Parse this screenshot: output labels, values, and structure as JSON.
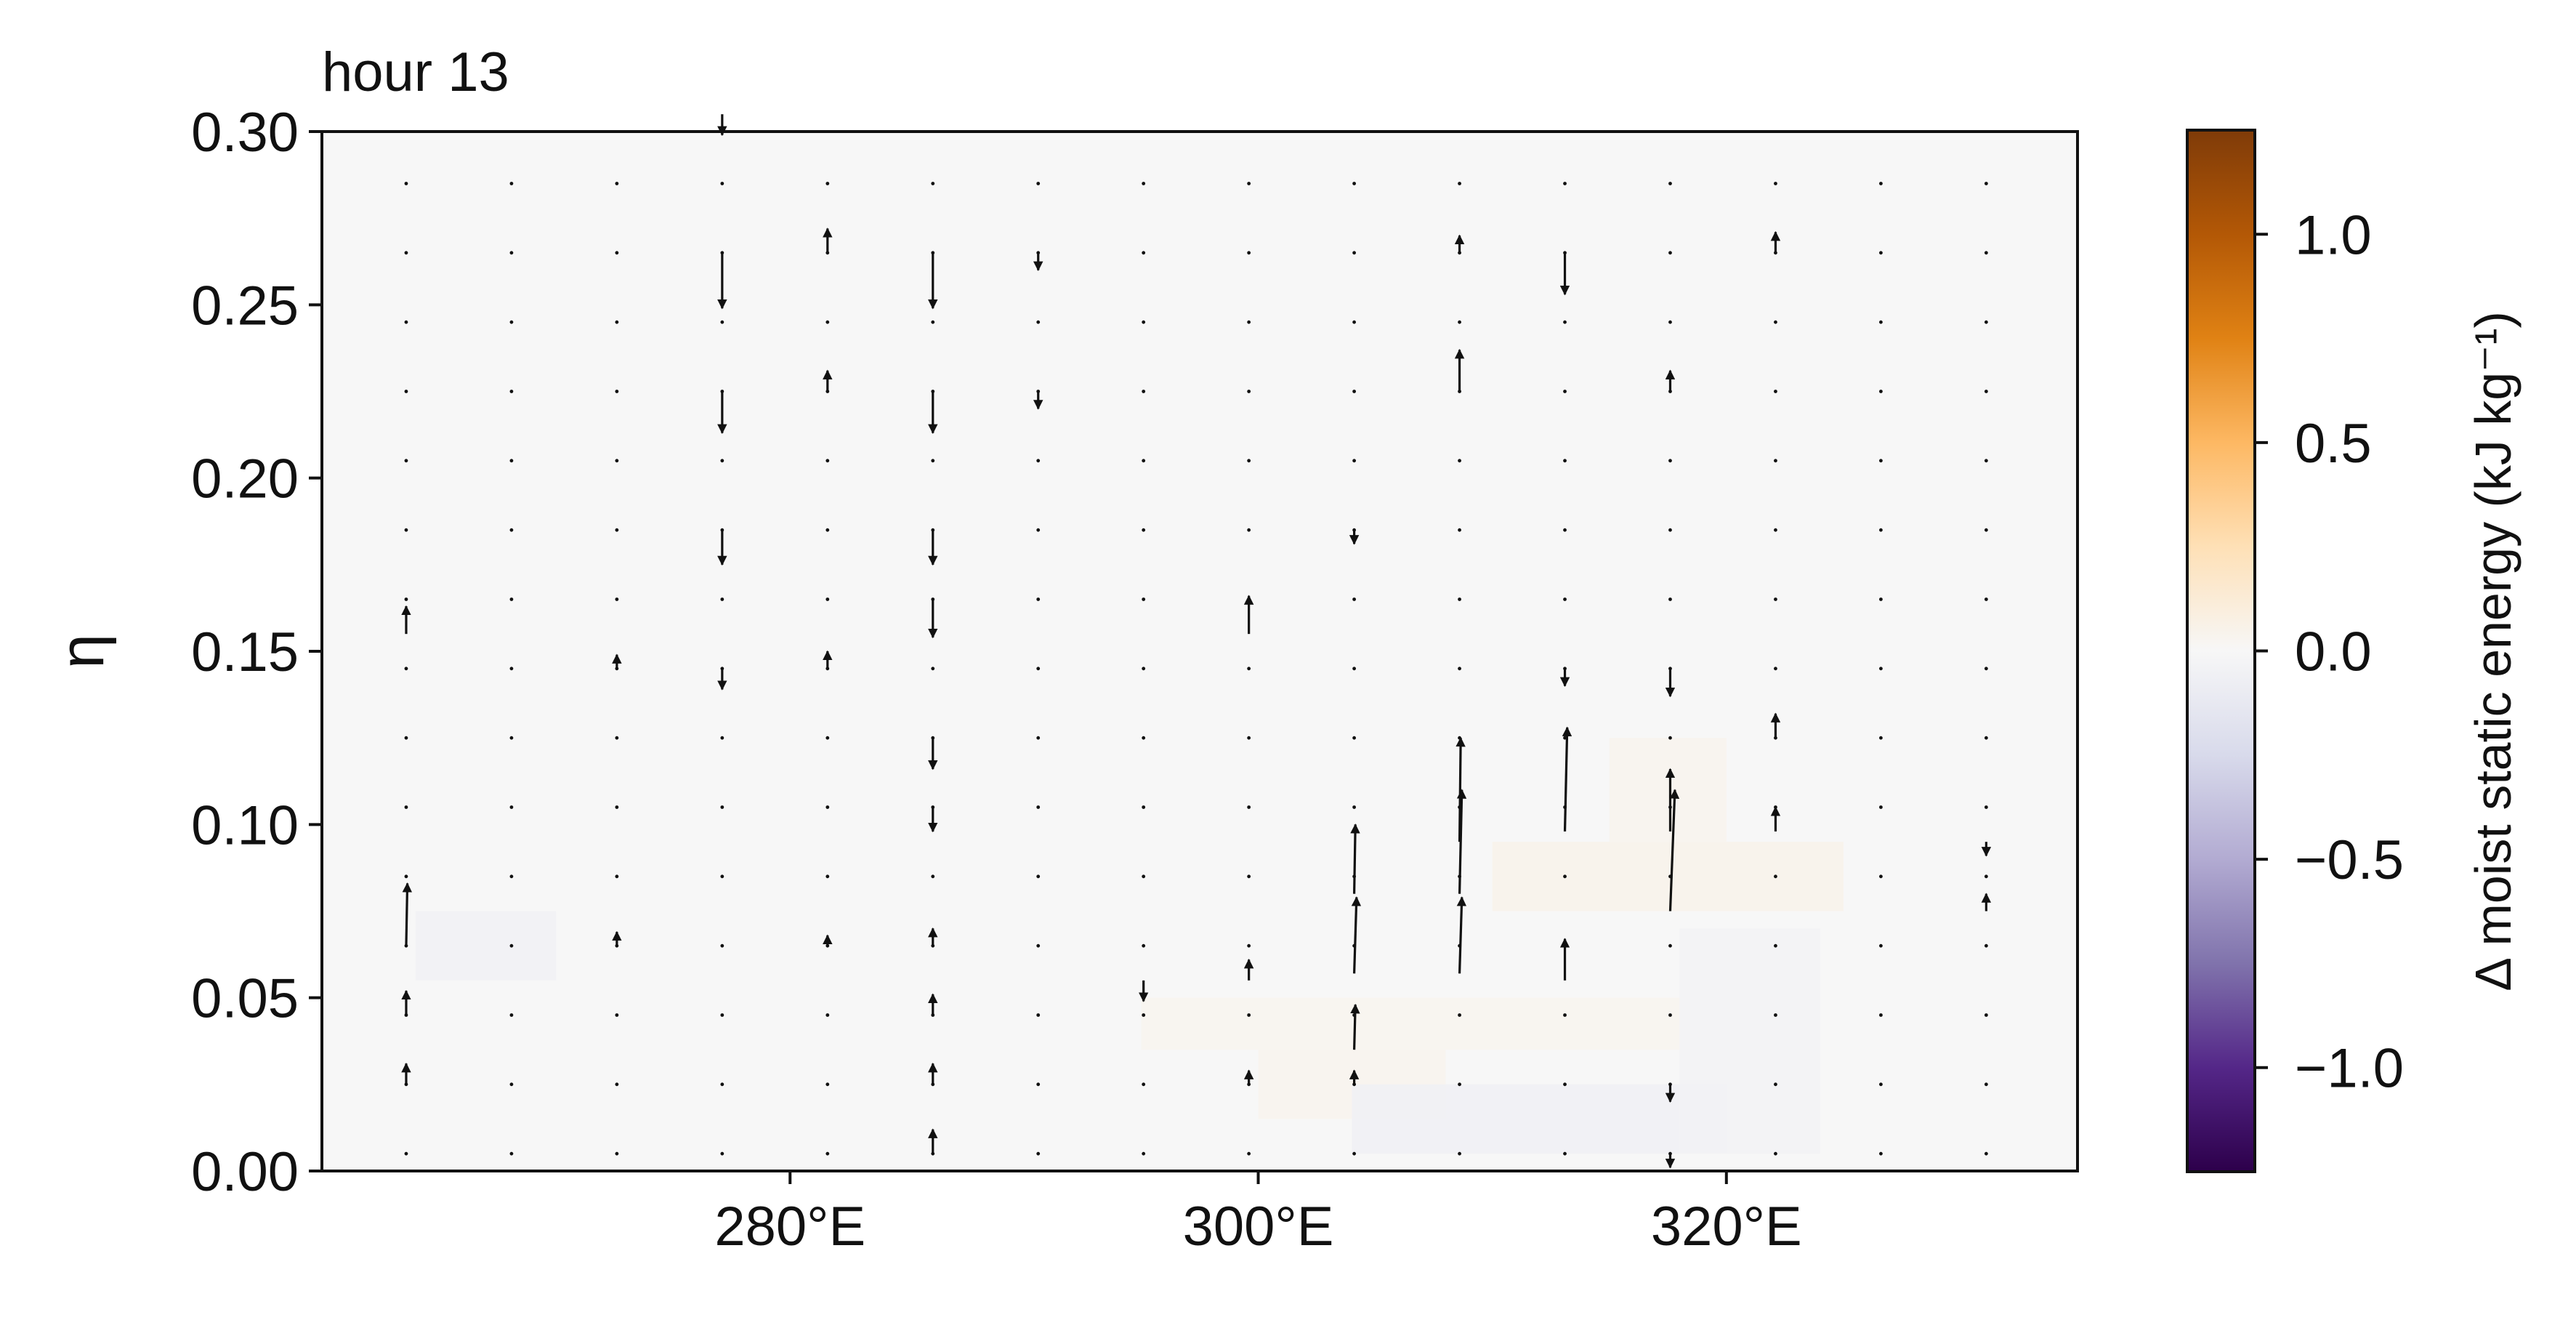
{
  "chart_data": {
    "type": "heatmap",
    "title": "hour 13",
    "xlabel": "",
    "ylabel": "η",
    "xlim": [
      260,
      335
    ],
    "ylim": [
      0.0,
      0.3
    ],
    "xticks": [
      280,
      300,
      320
    ],
    "xtick_labels": [
      "280°E",
      "300°E",
      "320°E"
    ],
    "yticks": [
      0.0,
      0.05,
      0.1,
      0.15,
      0.2,
      0.25,
      0.3
    ],
    "ytick_labels": [
      "0.00",
      "0.05",
      "0.10",
      "0.15",
      "0.20",
      "0.25",
      "0.30"
    ],
    "colorbar": {
      "label": "Δ moist static energy (kJ kg⁻¹)",
      "colormap": "PuOr_r",
      "range": [
        -1.25,
        1.25
      ],
      "ticks": [
        -1.0,
        -0.5,
        0.0,
        0.5,
        1.0
      ],
      "tick_labels": [
        "−1.0",
        "−0.5",
        "0.0",
        "0.5",
        "1.0"
      ],
      "colors": [
        "#2d004b",
        "#542788",
        "#8073ac",
        "#b2abd2",
        "#d8daeb",
        "#f7f7f7",
        "#fee0b6",
        "#fdb863",
        "#e08214",
        "#b35806",
        "#7f3b08"
      ]
    },
    "field_regions": [
      {
        "lon": [
          260.5,
          333.5
        ],
        "eta": [
          0.0,
          0.3
        ],
        "value": 0.0
      },
      {
        "lon": [
          264.0,
          270.0
        ],
        "eta": [
          0.055,
          0.075
        ],
        "value": -0.05
      },
      {
        "lon": [
          295.0,
          318.0
        ],
        "eta": [
          0.035,
          0.05
        ],
        "value": 0.03
      },
      {
        "lon": [
          300.0,
          308.0
        ],
        "eta": [
          0.015,
          0.035
        ],
        "value": 0.04
      },
      {
        "lon": [
          304.0,
          320.0
        ],
        "eta": [
          0.005,
          0.025
        ],
        "value": -0.06
      },
      {
        "lon": [
          310.0,
          325.0
        ],
        "eta": [
          0.075,
          0.095
        ],
        "value": 0.05
      },
      {
        "lon": [
          315.0,
          320.0
        ],
        "eta": [
          0.095,
          0.125
        ],
        "value": 0.04
      },
      {
        "lon": [
          318.0,
          324.0
        ],
        "eta": [
          0.005,
          0.07
        ],
        "value": -0.04
      }
    ],
    "quiver": {
      "lons": [
        263.6,
        268.1,
        272.6,
        277.1,
        281.6,
        286.1,
        290.6,
        295.1,
        299.6,
        304.1,
        308.6,
        313.1,
        317.6,
        322.1,
        326.6,
        331.1
      ],
      "etas": [
        0.005,
        0.025,
        0.045,
        0.065,
        0.085,
        0.105,
        0.125,
        0.145,
        0.165,
        0.185,
        0.205,
        0.225,
        0.245,
        0.265,
        0.285
      ],
      "vectors": [
        {
          "lon": 263.6,
          "eta": 0.025,
          "du": 0.0,
          "dw": 0.006
        },
        {
          "lon": 263.6,
          "eta": 0.045,
          "du": 0.0,
          "dw": 0.007
        },
        {
          "lon": 263.6,
          "eta": 0.065,
          "du": 0.05,
          "dw": 0.018
        },
        {
          "lon": 263.6,
          "eta": 0.155,
          "du": 0.0,
          "dw": 0.008
        },
        {
          "lon": 272.6,
          "eta": 0.065,
          "du": 0.0,
          "dw": 0.004
        },
        {
          "lon": 272.6,
          "eta": 0.145,
          "du": 0.0,
          "dw": 0.004
        },
        {
          "lon": 277.1,
          "eta": 0.145,
          "du": 0.0,
          "dw": -0.006
        },
        {
          "lon": 277.1,
          "eta": 0.185,
          "du": 0.0,
          "dw": -0.01
        },
        {
          "lon": 277.1,
          "eta": 0.225,
          "du": 0.0,
          "dw": -0.012
        },
        {
          "lon": 277.1,
          "eta": 0.265,
          "du": 0.0,
          "dw": -0.016
        },
        {
          "lon": 277.1,
          "eta": 0.305,
          "du": 0.0,
          "dw": -0.006
        },
        {
          "lon": 281.6,
          "eta": 0.145,
          "du": 0.0,
          "dw": 0.005
        },
        {
          "lon": 281.6,
          "eta": 0.225,
          "du": 0.0,
          "dw": 0.006
        },
        {
          "lon": 281.6,
          "eta": 0.265,
          "du": 0.0,
          "dw": 0.007
        },
        {
          "lon": 281.6,
          "eta": 0.065,
          "du": 0.0,
          "dw": 0.003
        },
        {
          "lon": 286.1,
          "eta": 0.005,
          "du": 0.0,
          "dw": 0.007
        },
        {
          "lon": 286.1,
          "eta": 0.025,
          "du": 0.0,
          "dw": 0.006
        },
        {
          "lon": 286.1,
          "eta": 0.045,
          "du": 0.0,
          "dw": 0.006
        },
        {
          "lon": 286.1,
          "eta": 0.065,
          "du": 0.0,
          "dw": 0.005
        },
        {
          "lon": 286.1,
          "eta": 0.105,
          "du": 0.0,
          "dw": -0.007
        },
        {
          "lon": 286.1,
          "eta": 0.125,
          "du": 0.0,
          "dw": -0.009
        },
        {
          "lon": 286.1,
          "eta": 0.165,
          "du": 0.0,
          "dw": -0.011
        },
        {
          "lon": 286.1,
          "eta": 0.185,
          "du": 0.0,
          "dw": -0.01
        },
        {
          "lon": 286.1,
          "eta": 0.225,
          "du": 0.0,
          "dw": -0.012
        },
        {
          "lon": 286.1,
          "eta": 0.265,
          "du": 0.0,
          "dw": -0.016
        },
        {
          "lon": 290.6,
          "eta": 0.225,
          "du": 0.0,
          "dw": -0.005
        },
        {
          "lon": 290.6,
          "eta": 0.265,
          "du": 0.0,
          "dw": -0.005
        },
        {
          "lon": 295.1,
          "eta": 0.055,
          "du": 0.0,
          "dw": -0.006
        },
        {
          "lon": 299.6,
          "eta": 0.025,
          "du": 0.0,
          "dw": 0.004
        },
        {
          "lon": 299.6,
          "eta": 0.055,
          "du": 0.0,
          "dw": 0.006
        },
        {
          "lon": 299.6,
          "eta": 0.155,
          "du": 0.0,
          "dw": 0.011
        },
        {
          "lon": 304.1,
          "eta": 0.025,
          "du": 0.0,
          "dw": 0.004
        },
        {
          "lon": 304.1,
          "eta": 0.035,
          "du": 0.05,
          "dw": 0.013
        },
        {
          "lon": 304.1,
          "eta": 0.057,
          "du": 0.1,
          "dw": 0.022
        },
        {
          "lon": 304.1,
          "eta": 0.08,
          "du": 0.05,
          "dw": 0.02
        },
        {
          "lon": 304.1,
          "eta": 0.185,
          "du": 0.0,
          "dw": -0.004
        },
        {
          "lon": 308.6,
          "eta": 0.057,
          "du": 0.1,
          "dw": 0.022
        },
        {
          "lon": 308.6,
          "eta": 0.08,
          "du": 0.1,
          "dw": 0.03
        },
        {
          "lon": 308.6,
          "eta": 0.095,
          "du": 0.05,
          "dw": 0.03
        },
        {
          "lon": 308.6,
          "eta": 0.225,
          "du": 0.0,
          "dw": 0.012
        },
        {
          "lon": 308.6,
          "eta": 0.265,
          "du": 0.0,
          "dw": 0.005
        },
        {
          "lon": 313.1,
          "eta": 0.055,
          "du": 0.0,
          "dw": 0.012
        },
        {
          "lon": 313.1,
          "eta": 0.098,
          "du": 0.1,
          "dw": 0.03
        },
        {
          "lon": 313.1,
          "eta": 0.145,
          "du": 0.0,
          "dw": -0.005
        },
        {
          "lon": 313.1,
          "eta": 0.265,
          "du": 0.0,
          "dw": -0.012
        },
        {
          "lon": 317.6,
          "eta": 0.005,
          "du": 0.0,
          "dw": -0.004
        },
        {
          "lon": 317.6,
          "eta": 0.025,
          "du": 0.0,
          "dw": -0.005
        },
        {
          "lon": 317.6,
          "eta": 0.075,
          "du": 0.2,
          "dw": 0.035
        },
        {
          "lon": 317.6,
          "eta": 0.098,
          "du": 0.0,
          "dw": 0.018
        },
        {
          "lon": 317.6,
          "eta": 0.145,
          "du": 0.0,
          "dw": -0.008
        },
        {
          "lon": 317.6,
          "eta": 0.225,
          "du": 0.0,
          "dw": 0.006
        },
        {
          "lon": 322.1,
          "eta": 0.098,
          "du": 0.0,
          "dw": 0.007
        },
        {
          "lon": 322.1,
          "eta": 0.125,
          "du": 0.0,
          "dw": 0.007
        },
        {
          "lon": 322.1,
          "eta": 0.265,
          "du": 0.0,
          "dw": 0.006
        },
        {
          "lon": 331.1,
          "eta": 0.075,
          "du": 0.0,
          "dw": 0.005
        },
        {
          "lon": 331.1,
          "eta": 0.095,
          "du": 0.0,
          "dw": -0.004
        }
      ]
    }
  }
}
